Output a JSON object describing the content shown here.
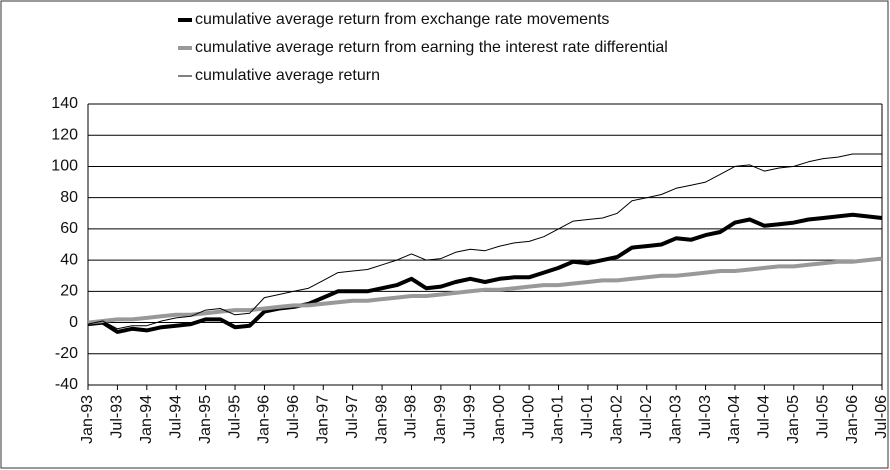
{
  "chart_data": {
    "type": "line",
    "categories": [
      "Jan-93",
      null,
      "Jul-93",
      null,
      "Jan-94",
      null,
      "Jul-94",
      null,
      "Jan-95",
      null,
      "Jul-95",
      null,
      "Jan-96",
      null,
      "Jul-96",
      null,
      "Jan-97",
      null,
      "Jul-97",
      null,
      "Jan-98",
      null,
      "Jul-98",
      null,
      "Jan-99",
      null,
      "Jul-99",
      null,
      "Jan-00",
      null,
      "Jul-00",
      null,
      "Jan-01",
      null,
      "Jul-01",
      null,
      "Jan-02",
      null,
      "Jul-02",
      null,
      "Jan-03",
      null,
      "Jul-03",
      null,
      "Jan-04",
      null,
      "Jul-04",
      null,
      "Jan-05",
      null,
      "Jul-05",
      null,
      "Jan-06",
      null,
      "Jul-06"
    ],
    "series": [
      {
        "name": "cumulative average return from exchange rate movements",
        "color": "#000000",
        "width": 4,
        "values": [
          -1,
          0,
          -6,
          -4,
          -5,
          -3,
          -2,
          -1,
          2,
          2,
          -3,
          -2,
          7,
          9,
          10,
          12,
          16,
          20,
          20,
          20,
          22,
          24,
          28,
          22,
          23,
          26,
          28,
          26,
          28,
          29,
          29,
          32,
          35,
          39,
          38,
          40,
          42,
          48,
          49,
          50,
          54,
          53,
          56,
          58,
          64,
          66,
          62,
          63,
          64,
          66,
          67,
          68,
          69,
          68,
          67
        ]
      },
      {
        "name": "cumulative average return from earning the interest rate differential",
        "color": "#999999",
        "width": 4,
        "values": [
          0,
          1,
          2,
          2,
          3,
          4,
          5,
          5,
          6,
          7,
          8,
          8,
          9,
          10,
          11,
          11,
          12,
          13,
          14,
          14,
          15,
          16,
          17,
          17,
          18,
          19,
          20,
          21,
          21,
          22,
          23,
          24,
          24,
          25,
          26,
          27,
          27,
          28,
          29,
          30,
          30,
          31,
          32,
          33,
          33,
          34,
          35,
          36,
          36,
          37,
          38,
          39,
          39,
          40,
          41
        ]
      },
      {
        "name": "cumulative average return",
        "color": "#000000",
        "width": 1,
        "values": [
          -1,
          1,
          -4,
          -2,
          -2,
          1,
          3,
          4,
          8,
          9,
          5,
          6,
          16,
          18,
          20,
          22,
          27,
          32,
          33,
          34,
          37,
          40,
          44,
          40,
          41,
          45,
          47,
          46,
          49,
          51,
          52,
          55,
          60,
          65,
          66,
          67,
          70,
          78,
          80,
          82,
          86,
          88,
          90,
          95,
          100,
          101,
          97,
          99,
          100,
          103,
          105,
          106,
          108,
          108,
          108
        ]
      }
    ],
    "ylim": [
      -40,
      140
    ],
    "yticks": [
      -40,
      -20,
      0,
      20,
      40,
      60,
      80,
      100,
      120,
      140
    ],
    "grid": true
  }
}
